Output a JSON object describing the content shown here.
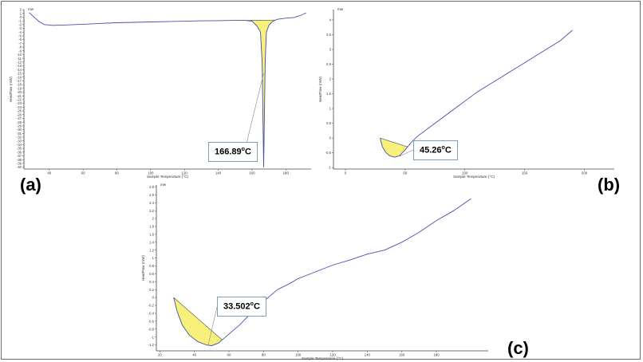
{
  "colors": {
    "trace": "#4a4fa8",
    "fill": "#f7f07a",
    "axis": "#444444",
    "callout_border": "#7f9db9"
  },
  "chart_data": [
    {
      "id": "a",
      "type": "line",
      "panel_label": "(a)",
      "units_tag": "mw",
      "xlabel": "Sample Temperature (°C)",
      "ylabel": "HeatFlow (mW)",
      "xlim": [
        25,
        195
      ],
      "ylim": [
        -40.5,
        2
      ],
      "xticks": [
        40,
        60,
        80,
        100,
        120,
        140,
        160,
        180
      ],
      "yticks": [
        2,
        1,
        0,
        -1,
        -2,
        -3,
        -4,
        -5,
        -6,
        -7,
        -8,
        -9,
        -10,
        -11,
        -12,
        -13,
        -14,
        -15,
        -16,
        -17,
        -18,
        -19,
        -20,
        -21,
        -22,
        -23,
        -24,
        -25,
        -26,
        -27,
        -28,
        -29,
        -30,
        -31,
        -32,
        -33,
        -34,
        -35,
        -36,
        -37,
        -38,
        -39,
        -40
      ],
      "ytick_step_shown": 1,
      "curve": [
        [
          28,
          1.2
        ],
        [
          31,
          0
        ],
        [
          34,
          -1.2
        ],
        [
          37,
          -2.0
        ],
        [
          42,
          -2.2
        ],
        [
          50,
          -2.1
        ],
        [
          60,
          -1.9
        ],
        [
          70,
          -1.7
        ],
        [
          80,
          -1.5
        ],
        [
          90,
          -1.4
        ],
        [
          100,
          -1.3
        ],
        [
          110,
          -1.2
        ],
        [
          120,
          -1.1
        ],
        [
          130,
          -1.0
        ],
        [
          140,
          -0.95
        ],
        [
          150,
          -0.9
        ],
        [
          156,
          -0.9
        ],
        [
          160,
          -1.1
        ],
        [
          163,
          -2.4
        ],
        [
          165,
          -4
        ],
        [
          166,
          -12
        ],
        [
          166.89,
          -40
        ],
        [
          167.8,
          -12
        ],
        [
          168.5,
          -4
        ],
        [
          170,
          -2.2
        ],
        [
          172,
          -1.2
        ],
        [
          175,
          -0.6
        ],
        [
          180,
          -0.3
        ],
        [
          185,
          -0.1
        ],
        [
          189,
          0.5
        ],
        [
          192,
          1.1
        ]
      ],
      "peak_area": [
        [
          156,
          -0.9
        ],
        [
          160,
          -1.1
        ],
        [
          163,
          -2.4
        ],
        [
          165,
          -4
        ],
        [
          166,
          -12
        ],
        [
          166.89,
          -40
        ],
        [
          167.8,
          -12
        ],
        [
          168.5,
          -4
        ],
        [
          170,
          -2.2
        ],
        [
          172,
          -1.2
        ],
        [
          173.5,
          -0.8
        ]
      ],
      "baseline": [
        [
          156,
          -0.9
        ],
        [
          173.5,
          -0.8
        ]
      ],
      "annotation": {
        "text": "166.89",
        "unit": "°C",
        "sup": "o",
        "tail": "C"
      }
    },
    {
      "id": "b",
      "type": "line",
      "panel_label": "(b)",
      "units_tag": "mw",
      "xlabel": "Sample Temperature (°C)",
      "ylabel": "HeatFlow (mW)",
      "xlim": [
        -10,
        225
      ],
      "ylim": [
        -1.05,
        4.35
      ],
      "xticks": [
        0,
        50,
        100,
        150,
        200
      ],
      "yticks": [
        4,
        3.5,
        3,
        2.5,
        2,
        1.5,
        1,
        0.5,
        0,
        -0.5,
        -1
      ],
      "curve": [
        [
          29,
          0
        ],
        [
          31,
          -0.3
        ],
        [
          34,
          -0.5
        ],
        [
          37,
          -0.6
        ],
        [
          41,
          -0.65
        ],
        [
          45.26,
          -0.6
        ],
        [
          50,
          -0.4
        ],
        [
          55,
          -0.15
        ],
        [
          60,
          0.05
        ],
        [
          70,
          0.35
        ],
        [
          80,
          0.65
        ],
        [
          90,
          0.95
        ],
        [
          100,
          1.25
        ],
        [
          110,
          1.55
        ],
        [
          120,
          1.8
        ],
        [
          130,
          2.05
        ],
        [
          140,
          2.3
        ],
        [
          150,
          2.55
        ],
        [
          160,
          2.8
        ],
        [
          170,
          3.05
        ],
        [
          180,
          3.3
        ],
        [
          190,
          3.65
        ]
      ],
      "peak_area": [
        [
          29,
          0
        ],
        [
          31,
          -0.3
        ],
        [
          34,
          -0.5
        ],
        [
          37,
          -0.6
        ],
        [
          41,
          -0.65
        ],
        [
          45.26,
          -0.6
        ],
        [
          50,
          -0.4
        ],
        [
          52,
          -0.3
        ]
      ],
      "baseline": [
        [
          29,
          0
        ],
        [
          52,
          -0.3
        ]
      ],
      "annotation": {
        "text": "45.26",
        "unit": "°C",
        "sup": "o",
        "tail": "C"
      }
    },
    {
      "id": "c",
      "type": "line",
      "panel_label": "(c)",
      "units_tag": "mw",
      "xlabel": "Sample Temperature (°C)",
      "ylabel": "HeatFlow (mW)",
      "xlim": [
        18,
        210
      ],
      "ylim": [
        -1.35,
        2.85
      ],
      "xticks": [
        20,
        40,
        60,
        80,
        100,
        120,
        140,
        160,
        180
      ],
      "yticks": [
        2.8,
        2.6,
        2.4,
        2.2,
        2,
        1.8,
        1.6,
        1.4,
        1.2,
        1,
        0.8,
        0.6,
        0.4,
        0.2,
        0,
        -0.2,
        -0.4,
        -0.6,
        -0.8,
        -1,
        -1.2
      ],
      "curve": [
        [
          28,
          0
        ],
        [
          30,
          -0.35
        ],
        [
          33,
          -0.7
        ],
        [
          37,
          -0.95
        ],
        [
          42,
          -1.12
        ],
        [
          47,
          -1.2
        ],
        [
          50,
          -1.22
        ],
        [
          54,
          -1.15
        ],
        [
          58,
          -1.0
        ],
        [
          62,
          -0.85
        ],
        [
          66,
          -0.7
        ],
        [
          70,
          -0.52
        ],
        [
          75,
          -0.3
        ],
        [
          80,
          -0.1
        ],
        [
          88,
          0.2
        ],
        [
          95,
          0.35
        ],
        [
          100,
          0.48
        ],
        [
          110,
          0.65
        ],
        [
          120,
          0.82
        ],
        [
          130,
          0.95
        ],
        [
          140,
          1.1
        ],
        [
          150,
          1.2
        ],
        [
          160,
          1.4
        ],
        [
          170,
          1.65
        ],
        [
          180,
          1.95
        ],
        [
          190,
          2.2
        ],
        [
          200,
          2.5
        ]
      ],
      "peak_area": [
        [
          28,
          0
        ],
        [
          30,
          -0.35
        ],
        [
          33,
          -0.7
        ],
        [
          37,
          -0.95
        ],
        [
          42,
          -1.12
        ],
        [
          47,
          -1.2
        ],
        [
          50,
          -1.22
        ],
        [
          54,
          -1.15
        ],
        [
          56,
          -1.07
        ]
      ],
      "baseline": [
        [
          28,
          0
        ],
        [
          56,
          -1.07
        ]
      ],
      "annotation": {
        "text": "33.502",
        "unit": "°C",
        "sup": "o",
        "tail": "C"
      }
    }
  ]
}
